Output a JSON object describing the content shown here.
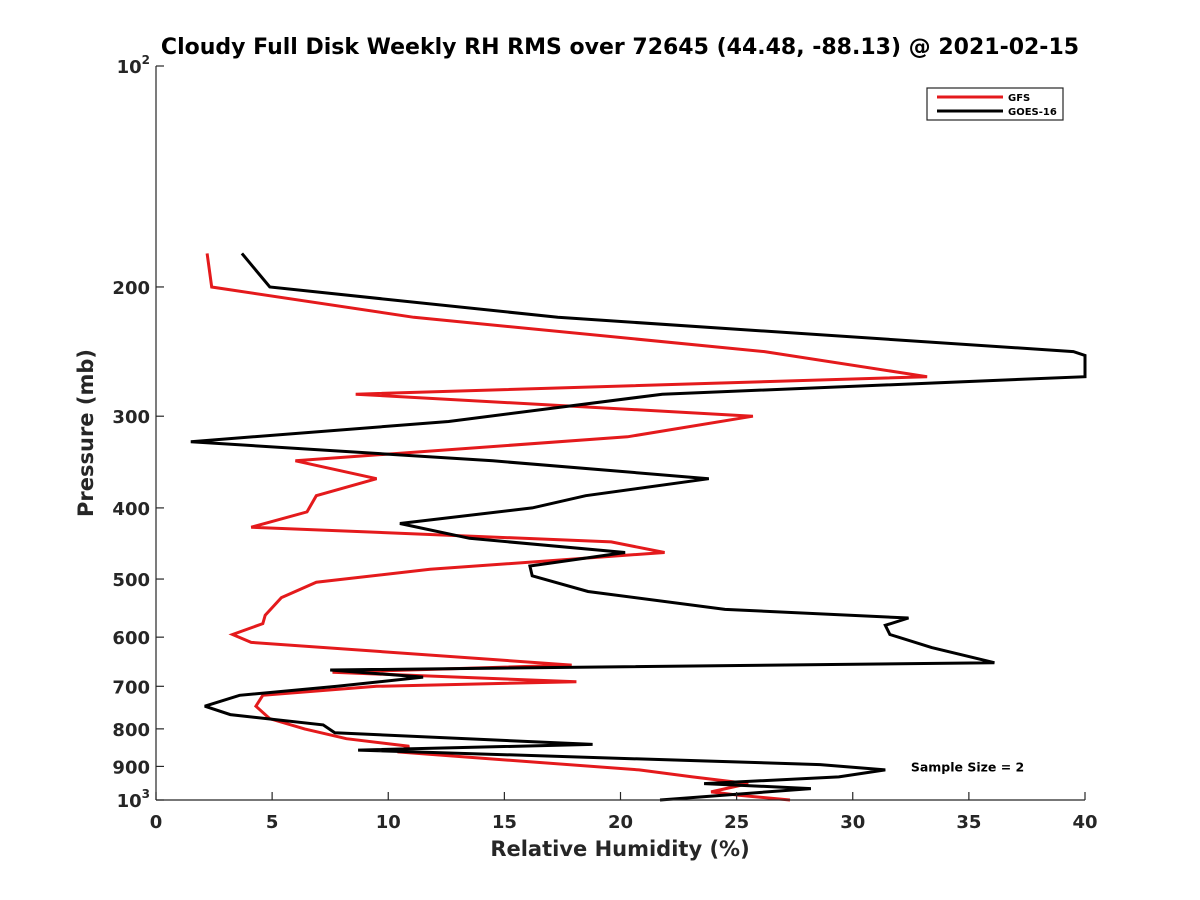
{
  "chart_data": {
    "type": "line",
    "title": "Cloudy Full Disk Weekly RH RMS over 72645 (44.48, -88.13) @ 2021-02-15",
    "xlabel": "Relative Humidity (%)",
    "ylabel": "Pressure (mb)",
    "xlim": [
      0,
      40
    ],
    "ylim": [
      100,
      1000
    ],
    "yscale": "log",
    "y_reversed": true,
    "grid": false,
    "legend_position": "top-right",
    "x_ticks": [
      "0",
      "5",
      "10",
      "15",
      "20",
      "25",
      "30",
      "35",
      "40"
    ],
    "y_ticks": [
      {
        "value": 100,
        "label": "10",
        "sup": "2"
      },
      {
        "value": 200,
        "label": "200",
        "sup": ""
      },
      {
        "value": 300,
        "label": "300",
        "sup": ""
      },
      {
        "value": 400,
        "label": "400",
        "sup": ""
      },
      {
        "value": 500,
        "label": "500",
        "sup": ""
      },
      {
        "value": 600,
        "label": "600",
        "sup": ""
      },
      {
        "value": 700,
        "label": "700",
        "sup": ""
      },
      {
        "value": 800,
        "label": "800",
        "sup": ""
      },
      {
        "value": 900,
        "label": "900",
        "sup": ""
      },
      {
        "value": 1000,
        "label": "10",
        "sup": "3"
      }
    ],
    "series": [
      {
        "name": "GFS",
        "color": "#e41a1c",
        "x": [
          2.2,
          2.4,
          11.1,
          26.2,
          33.2,
          8.6,
          25.7,
          20.3,
          6.0,
          9.5,
          6.9,
          6.5,
          4.1,
          19.6,
          21.9,
          11.8,
          6.9,
          5.4,
          4.7,
          4.6,
          3.3,
          4.1,
          17.9,
          7.6,
          18.1,
          9.5,
          4.6,
          4.3,
          4.9,
          6.4,
          8.2,
          10.9,
          10.4,
          20.8,
          23.1,
          25.5,
          23.9,
          25.1,
          27.3
        ],
        "y": [
          180,
          200,
          220,
          245,
          265,
          280,
          300,
          320,
          345,
          365,
          385,
          405,
          425,
          445,
          460,
          485,
          505,
          530,
          560,
          575,
          595,
          610,
          655,
          670,
          690,
          700,
          720,
          745,
          775,
          800,
          825,
          845,
          860,
          910,
          930,
          950,
          975,
          985,
          1000
        ]
      },
      {
        "name": "GOES-16",
        "color": "#000000",
        "x": [
          3.7,
          4.9,
          17.3,
          39.5,
          40.0,
          40.0,
          21.8,
          12.6,
          1.5,
          14.5,
          23.8,
          18.5,
          16.2,
          10.5,
          13.5,
          20.2,
          16.1,
          16.2,
          18.6,
          24.5,
          32.4,
          31.4,
          31.6,
          33.4,
          36.1,
          7.5,
          11.5,
          7.8,
          3.6,
          2.1,
          3.2,
          7.2,
          7.7,
          18.8,
          8.7,
          28.6,
          31.4,
          29.4,
          23.6,
          28.2,
          21.7
        ],
        "y": [
          180,
          200,
          220,
          245,
          248,
          265,
          280,
          305,
          325,
          345,
          365,
          385,
          400,
          420,
          440,
          460,
          480,
          495,
          520,
          550,
          565,
          578,
          595,
          620,
          650,
          665,
          680,
          700,
          720,
          745,
          765,
          790,
          810,
          840,
          855,
          895,
          910,
          930,
          950,
          965,
          1000
        ]
      }
    ],
    "annotations": [
      {
        "text": "Sample Size = 2",
        "x": 32.5,
        "y": 900
      }
    ]
  }
}
